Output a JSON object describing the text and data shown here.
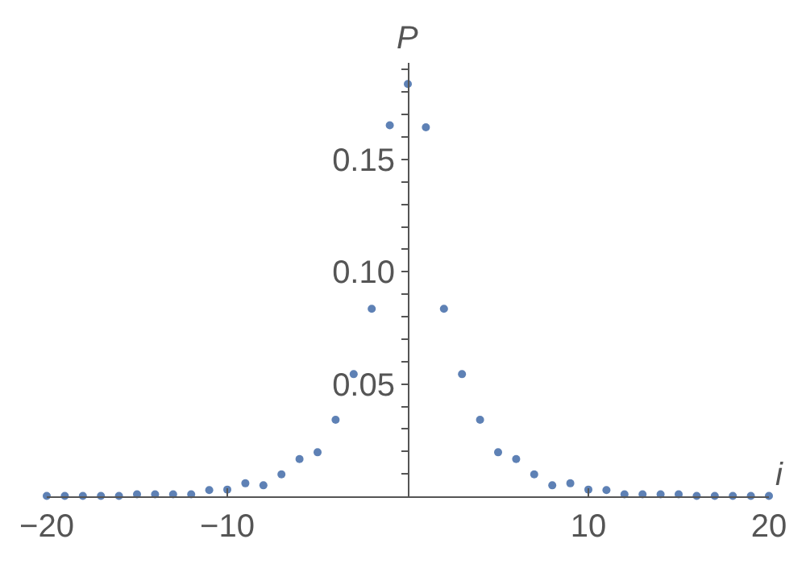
{
  "chart_data": {
    "type": "scatter",
    "xlabel": "i",
    "ylabel": "P",
    "marker": "circle",
    "x": [
      -20,
      -19,
      -18,
      -17,
      -16,
      -15,
      -14,
      -13,
      -12,
      -11,
      -10,
      -9,
      -8,
      -7,
      -6,
      -5,
      -4,
      -3,
      -2,
      -1,
      0,
      1,
      2,
      3,
      4,
      5,
      6,
      7,
      8,
      9,
      10,
      11,
      12,
      13,
      14,
      15,
      16,
      17,
      18,
      19,
      20
    ],
    "series": [
      {
        "color": "#5e81b5",
        "values": [
          0.0002,
          0.0002,
          0.0002,
          0.0002,
          0.0002,
          0.0009,
          0.0009,
          0.0009,
          0.0009,
          0.0028,
          0.003,
          0.0058,
          0.0049,
          0.0098,
          0.0166,
          0.0196,
          0.0341,
          0.0544,
          0.0835,
          0.1652,
          0.1836,
          0.1643,
          0.0835,
          0.0544,
          0.0341,
          0.0196,
          0.0166,
          0.0098,
          0.0049,
          0.0058,
          0.003,
          0.0028,
          0.0009,
          0.0009,
          0.0009,
          0.0009,
          0.0002,
          0.0002,
          0.0002,
          0.0002,
          0.0002
        ]
      }
    ],
    "xlim": [
      -20,
      20
    ],
    "ylim": [
      0,
      0.193
    ],
    "xticks": [
      -20,
      -10,
      10,
      20
    ],
    "yticks": [
      {
        "value": 0.01,
        "label": null
      },
      {
        "value": 0.02,
        "label": null
      },
      {
        "value": 0.03,
        "label": null
      },
      {
        "value": 0.04,
        "label": null
      },
      0.05,
      {
        "value": 0.06,
        "label": null
      },
      {
        "value": 0.07,
        "label": null
      },
      {
        "value": 0.08,
        "label": null
      },
      {
        "value": 0.09,
        "label": null
      },
      {
        "value": 0.1,
        "label": "0.10"
      },
      {
        "value": 0.11,
        "label": null
      },
      {
        "value": 0.12,
        "label": null
      },
      {
        "value": 0.13,
        "label": null
      },
      {
        "value": 0.14,
        "label": null
      },
      0.15,
      {
        "value": 0.16,
        "label": null
      },
      {
        "value": 0.17,
        "label": null
      },
      {
        "value": 0.18,
        "label": null
      },
      {
        "value": 0.19,
        "label": null
      }
    ]
  }
}
